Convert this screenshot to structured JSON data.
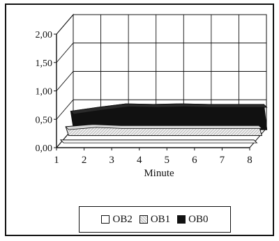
{
  "chart_data": {
    "type": "area",
    "style": "3d-stacked-depth",
    "xlabel": "Minute",
    "ylabel": "",
    "categories": [
      "1",
      "2",
      "3",
      "4",
      "5",
      "6",
      "7",
      "8"
    ],
    "y_ticks": [
      "0,00",
      "0,50",
      "1,00",
      "1,50",
      "2,00"
    ],
    "ylim": [
      0,
      2
    ],
    "grid": true,
    "legend_position": "bottom",
    "series": [
      {
        "name": "OB2",
        "color": "#ffffff",
        "values": [
          0.05,
          0.05,
          0.05,
          0.05,
          0.05,
          0.05,
          0.05,
          0.05
        ]
      },
      {
        "name": "OB1",
        "color": "#bdbdbd",
        "values": [
          0.18,
          0.22,
          0.2,
          0.2,
          0.2,
          0.2,
          0.2,
          0.2
        ]
      },
      {
        "name": "OB0",
        "color": "#111111",
        "values": [
          0.35,
          0.42,
          0.48,
          0.47,
          0.48,
          0.47,
          0.47,
          0.47
        ]
      }
    ]
  }
}
